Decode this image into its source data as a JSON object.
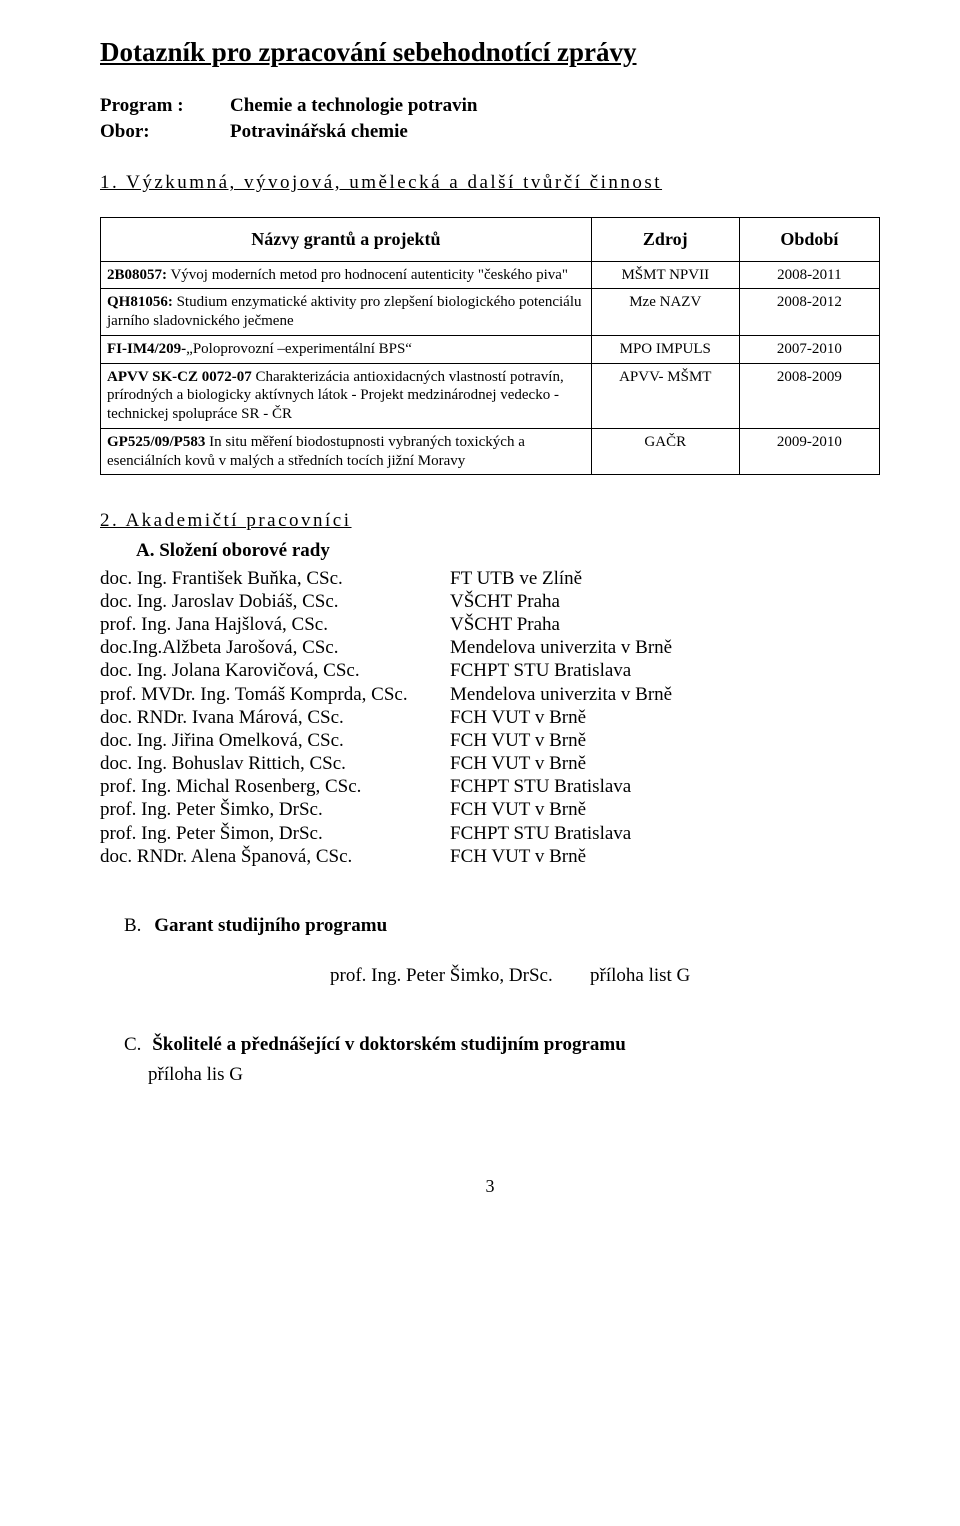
{
  "title": "Dotazník pro zpracování sebehodnotící zprávy",
  "program": {
    "label": "Program :",
    "value": "Chemie a technologie potravin"
  },
  "obor": {
    "label": "Obor:",
    "value": "Potravinářská chemie"
  },
  "section1": {
    "heading": "1. Výzkumná, vývojová, umělecká a další tvůrčí činnost"
  },
  "grants_table": {
    "headers": {
      "names": "Názvy grantů a projektů",
      "zdroj": "Zdroj",
      "obdobi": "Období"
    },
    "rows": [
      {
        "name": "2B08057: Vývoj moderních metod pro hodnocení autenticity \"českého piva\"",
        "zdroj": "MŠMT NPVII",
        "obdobi": "2008-2011"
      },
      {
        "name": "QH81056: Studium enzymatické aktivity pro zlepšení biologického potenciálu jarního sladovnického ječmene",
        "zdroj": "Mze NAZV",
        "obdobi": "2008-2012"
      },
      {
        "name": "FI-IM4/209-„Poloprovozní –experimentální BPS“",
        "zdroj": "MPO IMPULS",
        "obdobi": "2007-2010"
      },
      {
        "name": "APVV SK-CZ 0072-07  Charakterizácia antioxidacných vlastností potravín, prírodných a biologicky aktívnych látok - Projekt medzinárodnej vedecko - technickej spolupráce SR - ČR",
        "zdroj": "APVV- MŠMT",
        "obdobi": "2008-2009"
      },
      {
        "name": "GP525/09/P583 In situ měření biodostupnosti vybraných toxických a esenciálních kovů v malých a středních tocích jižní Moravy",
        "zdroj": "GAČR",
        "obdobi": "2009-2010"
      }
    ]
  },
  "section2": {
    "heading": "2.  Akademičtí  pracovníci",
    "sub_a": "A.  Složení oborové rady",
    "board": [
      {
        "name": "doc. Ing. František Buňka, CSc.",
        "inst": "FT UTB ve Zlíně"
      },
      {
        "name": "doc. Ing. Jaroslav Dobiáš, CSc.",
        "inst": "VŠCHT Praha"
      },
      {
        "name": "prof. Ing. Jana Hajšlová, CSc.",
        "inst": "VŠCHT Praha"
      },
      {
        "name": "doc.Ing.Alžbeta Jarošová, CSc.",
        "inst": "Mendelova univerzita v Brně"
      },
      {
        "name": "doc. Ing. Jolana Karovičová, CSc.",
        "inst": "FCHPT STU Bratislava"
      },
      {
        "name": "prof. MVDr. Ing. Tomáš Komprda, CSc.",
        "inst": "Mendelova univerzita v Brně"
      },
      {
        "name": "doc. RNDr. Ivana Márová, CSc.",
        "inst": "FCH VUT v Brně"
      },
      {
        "name": "doc. Ing. Jiřina Omelková, CSc.",
        "inst": "FCH VUT v Brně"
      },
      {
        "name": "doc. Ing. Bohuslav Rittich, CSc.",
        "inst": "FCH VUT v Brně"
      },
      {
        "name": "prof. Ing. Michal Rosenberg, CSc.",
        "inst": "FCHPT STU Bratislava"
      },
      {
        "name": "prof. Ing. Peter Šimko, DrSc.",
        "inst": "FCH VUT v Brně"
      },
      {
        "name": "prof. Ing. Peter Šimon, DrSc.",
        "inst": "FCHPT STU Bratislava"
      },
      {
        "name": "doc. RNDr. Alena Španová, CSc.",
        "inst": "FCH VUT v Brně"
      }
    ],
    "sub_b_label": "B.",
    "sub_b_text": "Garant studijního programu",
    "garant": {
      "name": "prof. Ing. Peter Šimko, DrSc.",
      "note": "příloha  list G"
    },
    "sub_c_label": "C.",
    "sub_c_text": "Školitelé a přednášející v doktorském studijním programu",
    "priloha_c": "příloha  lis G"
  },
  "page_number": "3"
}
